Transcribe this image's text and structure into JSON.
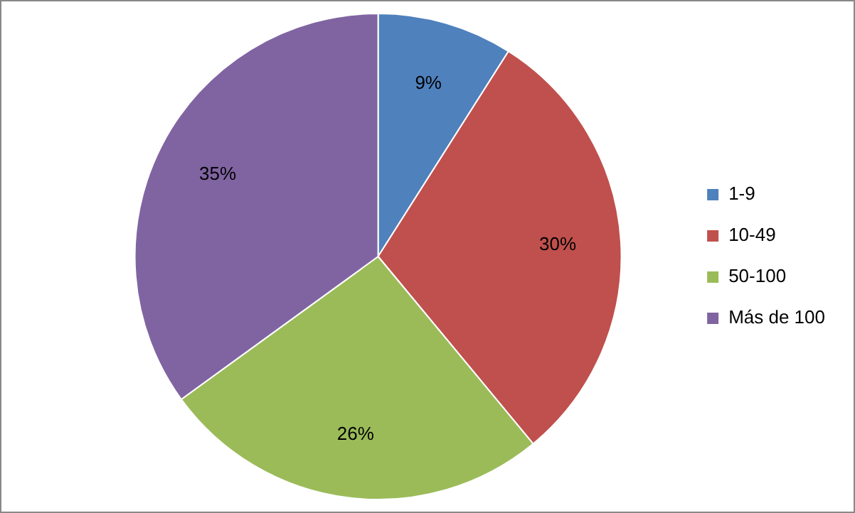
{
  "chart_data": {
    "type": "pie",
    "categories": [
      "1-9",
      "10-49",
      "50-100",
      "Más de 100"
    ],
    "values": [
      9,
      30,
      26,
      35
    ],
    "colors": [
      "#4f81bd",
      "#c0504d",
      "#9bbb59",
      "#8064a2"
    ],
    "value_labels": [
      "9%",
      "30%",
      "26%",
      "35%"
    ],
    "legend": "right"
  }
}
